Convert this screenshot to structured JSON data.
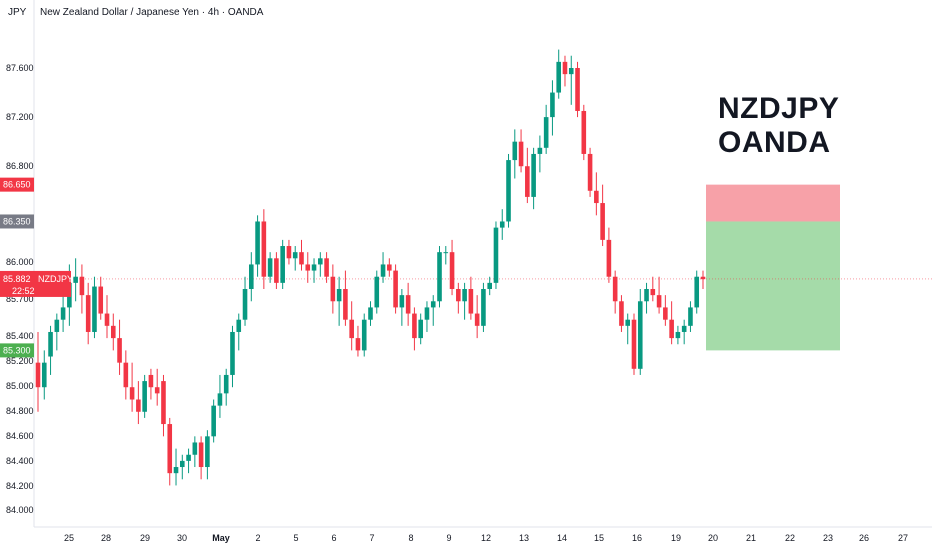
{
  "header": {
    "currency": "JPY",
    "title": "New Zealand Dollar / Japanese Yen · 4h · OANDA"
  },
  "annotation": {
    "line1": "NZDJPY",
    "line2": "OANDA"
  },
  "price_tags": {
    "last_price": "85.882",
    "last_symbol": "NZDJPY",
    "countdown": "22:52",
    "stop_level": "86.650",
    "entry_level": "86.350",
    "target_level": "85.300"
  },
  "colors": {
    "up": "#089981",
    "down": "#f23645",
    "stop_zone": "#f7a1a8",
    "target_zone": "#a5dba9",
    "entry_tag": "#787b86",
    "target_tag": "#4caf50"
  },
  "chart_data": {
    "type": "candlestick",
    "y_ticks": [
      "87.600",
      "87.200",
      "86.800",
      "86.000",
      "85.700",
      "85.400",
      "85.200",
      "85.000",
      "84.800",
      "84.600",
      "84.400",
      "84.200",
      "84.000"
    ],
    "ylim": [
      83.9,
      87.9
    ],
    "x_ticks": [
      "25",
      "28",
      "29",
      "30",
      "May",
      "2",
      "5",
      "6",
      "7",
      "8",
      "9",
      "12",
      "13",
      "14",
      "15",
      "16",
      "19",
      "20",
      "21",
      "22",
      "23",
      "26",
      "27"
    ],
    "last_price": 85.882,
    "position": {
      "stop": 86.65,
      "entry": 86.35,
      "target": 85.3
    },
    "candles": [
      [
        85.2,
        85.45,
        84.8,
        85.0
      ],
      [
        85.0,
        85.3,
        84.9,
        85.2
      ],
      [
        85.25,
        85.5,
        85.1,
        85.45
      ],
      [
        85.45,
        85.6,
        85.3,
        85.55
      ],
      [
        85.55,
        85.75,
        85.45,
        85.65
      ],
      [
        85.65,
        86.0,
        85.5,
        85.85
      ],
      [
        85.85,
        86.05,
        85.7,
        85.9
      ],
      [
        85.9,
        86.0,
        85.6,
        85.75
      ],
      [
        85.75,
        85.85,
        85.35,
        85.45
      ],
      [
        85.45,
        85.9,
        85.4,
        85.82
      ],
      [
        85.82,
        85.9,
        85.55,
        85.6
      ],
      [
        85.6,
        85.75,
        85.4,
        85.5
      ],
      [
        85.5,
        85.6,
        85.3,
        85.4
      ],
      [
        85.4,
        85.55,
        85.1,
        85.2
      ],
      [
        85.2,
        85.3,
        84.9,
        85.0
      ],
      [
        85.0,
        85.2,
        84.8,
        84.9
      ],
      [
        84.9,
        85.05,
        84.7,
        84.8
      ],
      [
        84.8,
        85.1,
        84.75,
        85.05
      ],
      [
        85.1,
        85.15,
        84.9,
        85.0
      ],
      [
        85.0,
        85.15,
        84.85,
        84.95
      ],
      [
        85.05,
        85.1,
        84.6,
        84.7
      ],
      [
        84.7,
        84.75,
        84.2,
        84.3
      ],
      [
        84.3,
        84.5,
        84.2,
        84.35
      ],
      [
        84.35,
        84.45,
        84.25,
        84.4
      ],
      [
        84.4,
        84.5,
        84.3,
        84.45
      ],
      [
        84.45,
        84.6,
        84.35,
        84.55
      ],
      [
        84.55,
        84.6,
        84.25,
        84.35
      ],
      [
        84.35,
        84.65,
        84.25,
        84.6
      ],
      [
        84.6,
        84.9,
        84.55,
        84.85
      ],
      [
        84.85,
        85.1,
        84.75,
        84.95
      ],
      [
        84.95,
        85.15,
        84.85,
        85.1
      ],
      [
        85.1,
        85.5,
        85.0,
        85.45
      ],
      [
        85.45,
        85.6,
        85.3,
        85.55
      ],
      [
        85.55,
        85.9,
        85.5,
        85.8
      ],
      [
        85.8,
        86.1,
        85.7,
        86.0
      ],
      [
        86.0,
        86.4,
        85.9,
        86.35
      ],
      [
        86.35,
        86.45,
        85.8,
        85.9
      ],
      [
        85.9,
        86.1,
        85.85,
        86.05
      ],
      [
        86.05,
        86.1,
        85.8,
        85.85
      ],
      [
        85.85,
        86.2,
        85.8,
        86.15
      ],
      [
        86.15,
        86.2,
        86.0,
        86.05
      ],
      [
        86.05,
        86.15,
        85.95,
        86.1
      ],
      [
        86.1,
        86.2,
        85.95,
        86.0
      ],
      [
        86.0,
        86.1,
        85.85,
        85.95
      ],
      [
        85.95,
        86.05,
        85.85,
        86.0
      ],
      [
        86.0,
        86.1,
        85.9,
        86.05
      ],
      [
        86.05,
        86.1,
        85.85,
        85.9
      ],
      [
        85.9,
        86.0,
        85.6,
        85.7
      ],
      [
        85.7,
        85.9,
        85.5,
        85.8
      ],
      [
        85.8,
        85.95,
        85.5,
        85.55
      ],
      [
        85.55,
        85.7,
        85.3,
        85.4
      ],
      [
        85.4,
        85.5,
        85.25,
        85.3
      ],
      [
        85.3,
        85.6,
        85.25,
        85.55
      ],
      [
        85.55,
        85.7,
        85.5,
        85.65
      ],
      [
        85.65,
        85.95,
        85.6,
        85.9
      ],
      [
        85.9,
        86.1,
        85.85,
        86.0
      ],
      [
        86.0,
        86.05,
        85.9,
        85.95
      ],
      [
        85.95,
        86.0,
        85.6,
        85.65
      ],
      [
        85.65,
        85.8,
        85.5,
        85.75
      ],
      [
        85.75,
        85.85,
        85.5,
        85.6
      ],
      [
        85.6,
        85.65,
        85.3,
        85.4
      ],
      [
        85.4,
        85.6,
        85.35,
        85.55
      ],
      [
        85.55,
        85.7,
        85.45,
        85.65
      ],
      [
        85.65,
        85.75,
        85.5,
        85.7
      ],
      [
        85.7,
        86.15,
        85.65,
        86.1
      ],
      [
        86.1,
        86.15,
        86.0,
        86.1
      ],
      [
        86.1,
        86.2,
        85.75,
        85.8
      ],
      [
        85.8,
        85.85,
        85.6,
        85.7
      ],
      [
        85.7,
        85.85,
        85.55,
        85.8
      ],
      [
        85.8,
        85.9,
        85.55,
        85.6
      ],
      [
        85.6,
        85.75,
        85.4,
        85.5
      ],
      [
        85.5,
        85.85,
        85.45,
        85.8
      ],
      [
        85.8,
        85.9,
        85.75,
        85.85
      ],
      [
        85.85,
        86.35,
        85.8,
        86.3
      ],
      [
        86.3,
        86.45,
        86.2,
        86.35
      ],
      [
        86.35,
        86.9,
        86.3,
        86.85
      ],
      [
        86.85,
        87.1,
        86.7,
        87.0
      ],
      [
        87.0,
        87.1,
        86.75,
        86.8
      ],
      [
        86.8,
        86.95,
        86.5,
        86.55
      ],
      [
        86.55,
        86.95,
        86.45,
        86.9
      ],
      [
        86.9,
        87.05,
        86.75,
        86.95
      ],
      [
        86.95,
        87.3,
        86.9,
        87.2
      ],
      [
        87.2,
        87.5,
        87.05,
        87.4
      ],
      [
        87.4,
        87.75,
        87.35,
        87.65
      ],
      [
        87.65,
        87.7,
        87.45,
        87.55
      ],
      [
        87.55,
        87.7,
        87.3,
        87.6
      ],
      [
        87.6,
        87.65,
        87.2,
        87.25
      ],
      [
        87.25,
        87.3,
        86.85,
        86.9
      ],
      [
        86.9,
        86.95,
        86.55,
        86.6
      ],
      [
        86.6,
        86.75,
        86.4,
        86.5
      ],
      [
        86.5,
        86.65,
        86.15,
        86.2
      ],
      [
        86.2,
        86.3,
        85.85,
        85.9
      ],
      [
        85.9,
        85.95,
        85.6,
        85.7
      ],
      [
        85.7,
        85.75,
        85.45,
        85.5
      ],
      [
        85.5,
        85.6,
        85.35,
        85.55
      ],
      [
        85.55,
        85.6,
        85.1,
        85.15
      ],
      [
        85.15,
        85.8,
        85.1,
        85.7
      ],
      [
        85.7,
        85.85,
        85.6,
        85.8
      ],
      [
        85.8,
        85.9,
        85.7,
        85.75
      ],
      [
        85.75,
        85.9,
        85.6,
        85.65
      ],
      [
        85.65,
        85.75,
        85.5,
        85.55
      ],
      [
        85.55,
        85.7,
        85.35,
        85.4
      ],
      [
        85.4,
        85.5,
        85.35,
        85.45
      ],
      [
        85.45,
        85.55,
        85.35,
        85.5
      ],
      [
        85.5,
        85.7,
        85.45,
        85.65
      ],
      [
        85.65,
        85.95,
        85.6,
        85.9
      ],
      [
        85.9,
        85.95,
        85.8,
        85.88
      ]
    ]
  }
}
